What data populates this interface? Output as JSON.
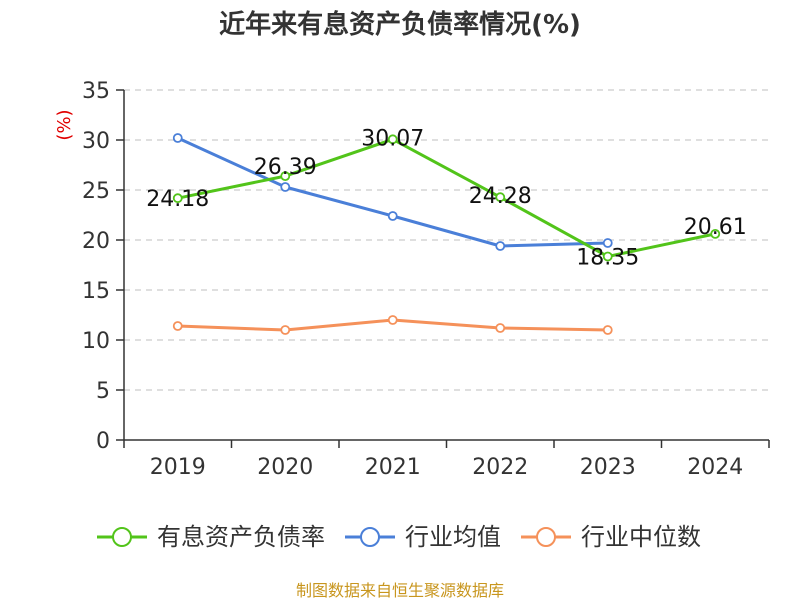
{
  "chart_data": {
    "type": "line",
    "title": "近年来有息资产负债率情况(%)",
    "ylabel": "(%)",
    "xlabel": "",
    "categories": [
      "2019",
      "2020",
      "2021",
      "2022",
      "2023",
      "2024"
    ],
    "ylim": [
      0,
      35
    ],
    "yticks": [
      0,
      5,
      10,
      15,
      20,
      25,
      30,
      35
    ],
    "grid": true,
    "legend_position": "bottom",
    "series": [
      {
        "name": "有息资产负债率",
        "color": "#52c41a",
        "values": [
          24.18,
          26.39,
          30.07,
          24.28,
          18.35,
          20.61
        ],
        "labels": [
          "24.18",
          "26.39",
          "30.07",
          "24.28",
          "18.35",
          "20.61"
        ]
      },
      {
        "name": "行业均值",
        "color": "#4a7fd8",
        "values": [
          30.2,
          25.3,
          22.4,
          19.4,
          19.7,
          null
        ]
      },
      {
        "name": "行业中位数",
        "color": "#f5915a",
        "values": [
          11.4,
          11.0,
          12.0,
          11.2,
          11.0,
          null
        ]
      }
    ]
  },
  "source_text": "制图数据来自恒生聚源数据库"
}
